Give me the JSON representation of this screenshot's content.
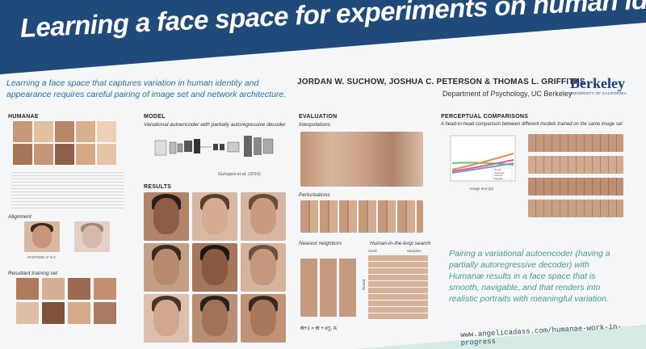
{
  "banner": {
    "title": "Learning a face space for experiments on human identity",
    "bg_color": "#1f4a7a"
  },
  "intro": {
    "text": "Learning a face space that captures variation in human identity and appearance requires careful pairing of image set and network architecture."
  },
  "authors": {
    "names": "JORDAN W. SUCHOW, JOSHUA C. PETERSON & THOMAS L. GRIFFITHS",
    "department": "Department of Psychology, UC Berkeley",
    "logo": "Berkeley",
    "logo_sub": "UNIVERSITY OF CALIFORNIA"
  },
  "sections": {
    "humanae": {
      "heading": "HUMANAE",
      "alignment_label": "Alignment",
      "resultant_label": "Resultant training set",
      "swatch_label": "PANTONE 4* 8-C"
    },
    "model": {
      "heading": "MODEL",
      "caption": "Variational autoencoder with partially autoregressive decoder",
      "citation": "Gulrajani et al. (2016)"
    },
    "results": {
      "heading": "RESULTS"
    },
    "evaluation": {
      "heading": "EVALUATION",
      "interpolations_label": "Interpolations",
      "perturbations_label": "Perturbations",
      "nearest_label": "Nearest neighbors",
      "hitl_label": "Human-in-the-loop search",
      "seed_label": "Seed",
      "samples_label": "Samples",
      "round_label": "Round",
      "formula": "θt+1 = θt + α∑ᵢ Xᵢ"
    },
    "perceptual": {
      "heading": "PERCEPTUAL COMPARISONS",
      "caption": "A head-to-head comparison between different models trained on the same image set",
      "xlabel": "Image test (pt)",
      "legend": [
        "Dense",
        "Seedmap",
        "Anterior",
        "Sample"
      ]
    }
  },
  "conclusion": {
    "text": "Pairing a variational autoencoder (having a partially autoregressive decoder) with Humanæ results in a face space that is smooth, navigable, and that renders into realistic portraits with meaningful variation."
  },
  "footer": {
    "url": "www.angelicadass.com/humanae-work-in-progress"
  },
  "colors": {
    "accent_blue": "#2f6f9e",
    "accent_teal": "#4a9b86",
    "footer_band": "#d6eae4"
  }
}
